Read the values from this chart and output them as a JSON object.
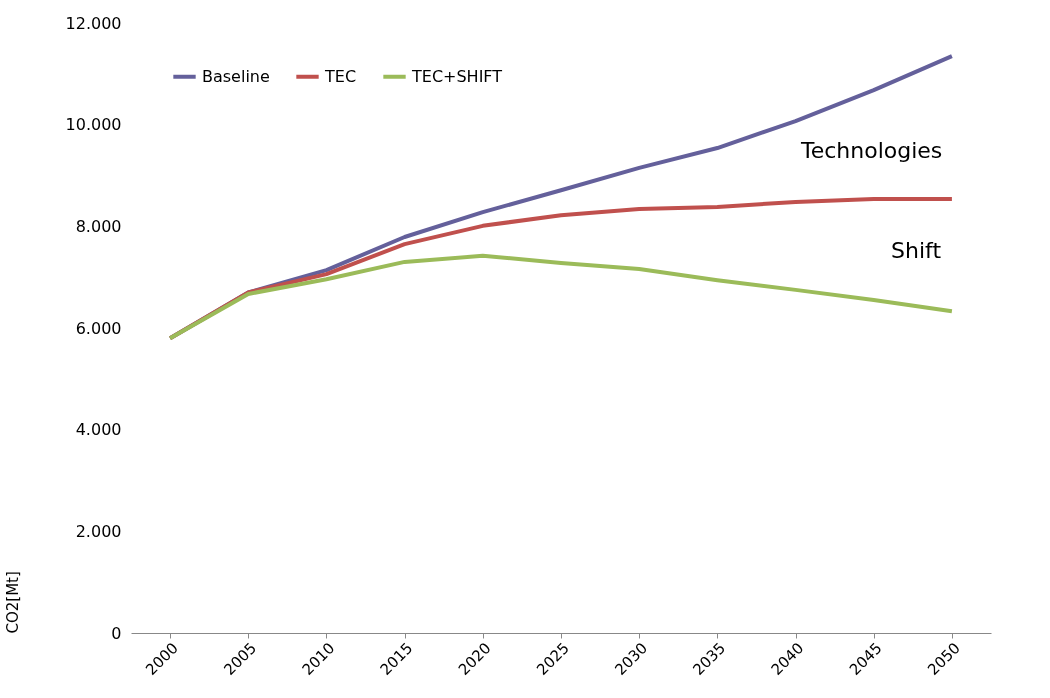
{
  "chart_data": {
    "type": "line",
    "ylabel": "CO2[Mt]",
    "categories": [
      "2000",
      "2005",
      "2010",
      "2015",
      "2020",
      "2025",
      "2030",
      "2035",
      "2040",
      "2045",
      "2050"
    ],
    "series": [
      {
        "name": "Baseline",
        "color": "#64609b",
        "values": [
          5800,
          6700,
          7140,
          7790,
          8280,
          8710,
          9150,
          9540,
          10070,
          10680,
          11350
        ]
      },
      {
        "name": "TEC",
        "color": "#c0504d",
        "values": [
          5800,
          6700,
          7060,
          7650,
          8010,
          8220,
          8340,
          8380,
          8480,
          8540,
          8540
        ]
      },
      {
        "name": "TEC+SHIFT",
        "color": "#9bbb59",
        "values": [
          5800,
          6670,
          6960,
          7300,
          7420,
          7280,
          7160,
          6940,
          6750,
          6550,
          6330
        ]
      }
    ],
    "ylim": [
      0,
      12000
    ],
    "yticks": [
      0,
      {
        "value": 2000,
        "label": "2.000"
      },
      {
        "value": 4000,
        "label": "4.000"
      },
      {
        "value": 6000,
        "label": "6.000"
      },
      {
        "value": 8000,
        "label": "8.000"
      },
      {
        "value": 10000,
        "label": "10.000"
      },
      {
        "value": 12000,
        "label": "12.000"
      }
    ],
    "annotations": [
      "Technologies",
      "Shift"
    ],
    "legend": "top left",
    "grid": false,
    "line_style": "solid"
  }
}
